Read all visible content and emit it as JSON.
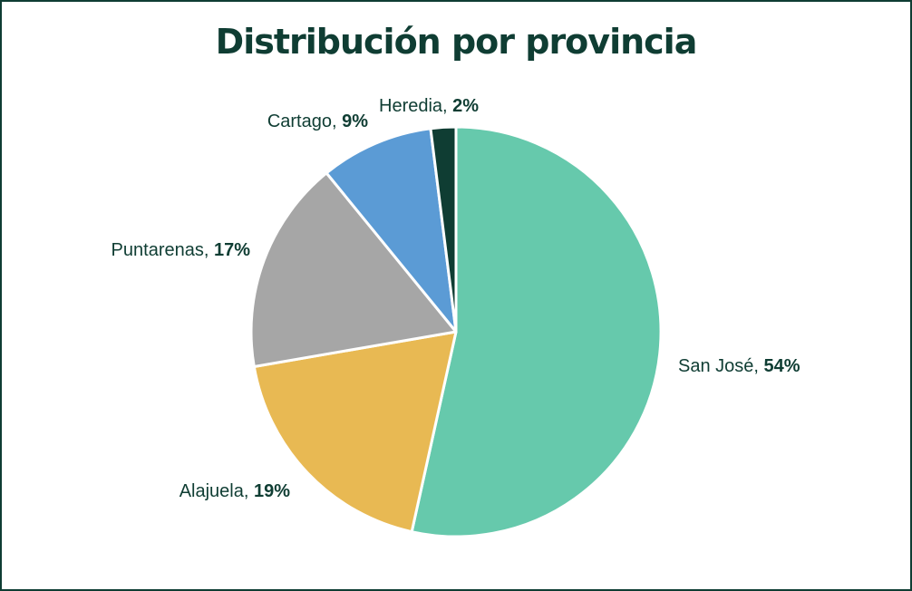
{
  "chart_data": {
    "type": "pie",
    "title": "Distribución por provincia",
    "slices": [
      {
        "label": "San José",
        "value": 54,
        "display": "54%",
        "color": "#66c9ac"
      },
      {
        "label": "Alajuela",
        "value": 19,
        "display": "19%",
        "color": "#e8b953"
      },
      {
        "label": "Puntarenas",
        "value": 17,
        "display": "17%",
        "color": "#a6a6a6"
      },
      {
        "label": "Cartago",
        "value": 9,
        "display": "9%",
        "color": "#5b9bd5"
      },
      {
        "label": "Heredia",
        "value": 2,
        "display": "2%",
        "color": "#0f3d33"
      }
    ],
    "start": "12 o'clock",
    "direction": "clockwise",
    "legend": "none (inline labels)"
  }
}
